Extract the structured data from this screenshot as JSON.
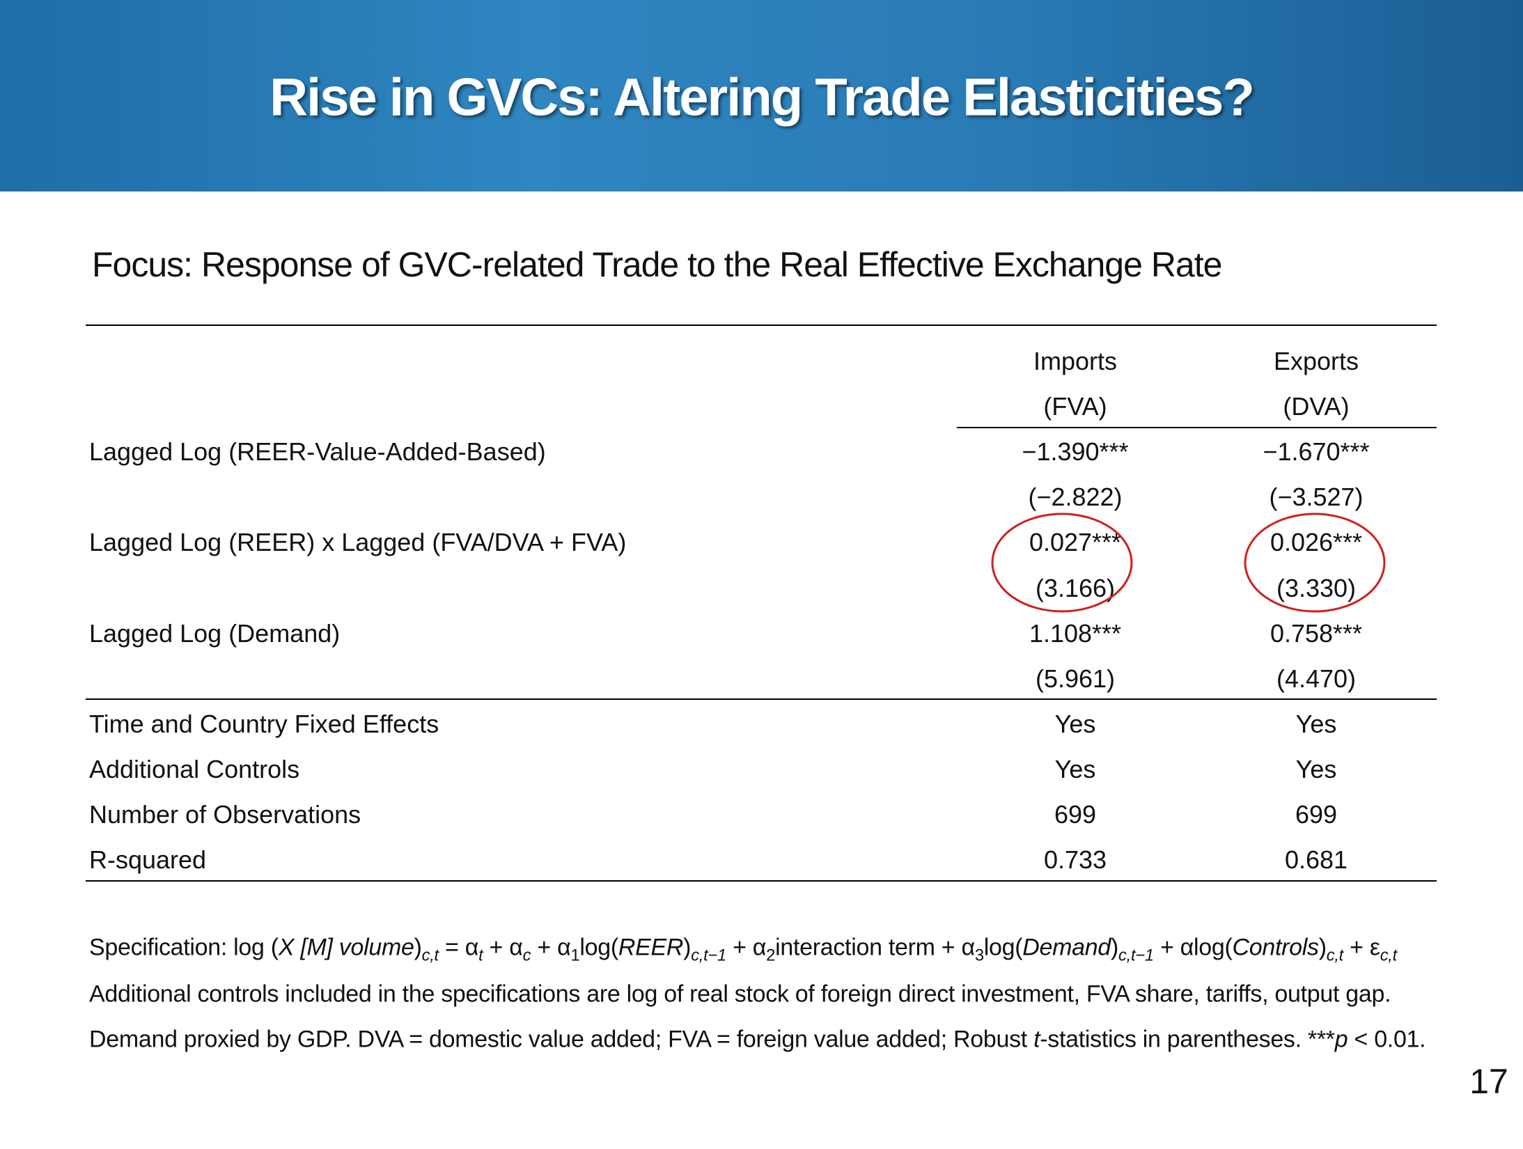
{
  "header": {
    "title": "Rise in GVCs:  Altering Trade Elasticities?"
  },
  "subtitle": "Focus:  Response of GVC-related Trade to the Real Effective Exchange Rate",
  "table": {
    "columns": [
      [
        "Imports",
        "(FVA)"
      ],
      [
        "Exports",
        "(DVA)"
      ]
    ],
    "rows": [
      {
        "label": "Lagged Log (REER-Value-Added-Based)",
        "cells": [
          [
            "−1.390***",
            "(−2.822)"
          ],
          [
            "−1.670***",
            "(−3.527)"
          ]
        ]
      },
      {
        "label": "Lagged Log (REER) x Lagged (FVA/DVA + FVA)",
        "cells": [
          [
            "0.027***",
            "(3.166)"
          ],
          [
            "0.026***",
            "(3.330)"
          ]
        ]
      },
      {
        "label": "Lagged Log (Demand)",
        "cells": [
          [
            "1.108***",
            "(5.961)"
          ],
          [
            "0.758***",
            "(4.470)"
          ]
        ]
      }
    ],
    "footer_rows": [
      {
        "label": "Time and Country Fixed Effects",
        "cells": [
          "Yes",
          "Yes"
        ]
      },
      {
        "label": "Additional Controls",
        "cells": [
          "Yes",
          "Yes"
        ]
      },
      {
        "label": "Number of Observations",
        "cells": [
          "699",
          "699"
        ]
      },
      {
        "label": "R-squared",
        "cells": [
          "0.733",
          "0.681"
        ]
      }
    ]
  },
  "notes": {
    "specification": [
      "Specification:  log (",
      "X [M] volume",
      ")",
      "c,t",
      " = α",
      "t",
      " + α",
      "c",
      " + α",
      "1",
      "log(",
      "REER",
      ")",
      "c,t−1",
      " + α",
      "2",
      "interaction term + α",
      "3",
      "log(",
      "Demand",
      ")",
      "c,t−1",
      " + αlog(",
      "Controls",
      ")",
      "c,t",
      " + ε",
      "c,t"
    ],
    "controls": "Additional controls included in the specifications are log of real stock of foreign direct investment, FVA share, tariffs, output gap.",
    "definitions": [
      "Demand proxied by GDP. DVA = domestic value added; FVA = foreign value added; Robust ",
      "t",
      "-statistics in parentheses. ***",
      "p",
      " < 0.01."
    ]
  },
  "page_number": "17"
}
